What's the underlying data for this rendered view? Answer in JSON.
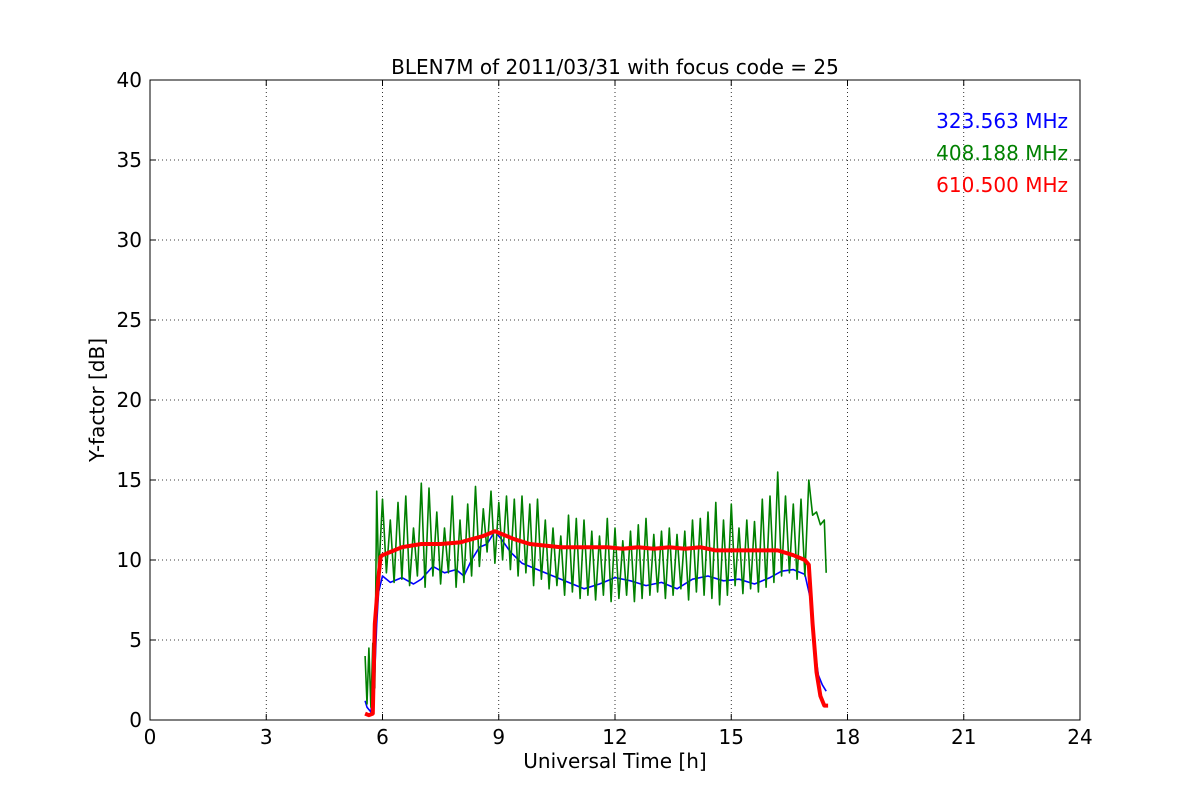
{
  "chart_data": {
    "type": "line",
    "title": "BLEN7M of 2011/03/31 with focus code = 25",
    "xlabel": "Universal Time [h]",
    "ylabel": "Y-factor [dB]",
    "xlim": [
      0,
      24
    ],
    "ylim": [
      0,
      40
    ],
    "xticks": [
      0,
      3,
      6,
      9,
      12,
      15,
      18,
      21,
      24
    ],
    "yticks": [
      0,
      5,
      10,
      15,
      20,
      25,
      30,
      35,
      40
    ],
    "grid": true,
    "legend_position": "top-right",
    "series": [
      {
        "name": "323.563 MHz",
        "color": "#0000ff",
        "x": [
          5.55,
          5.6,
          5.7,
          5.8,
          5.85,
          5.9,
          6.0,
          6.2,
          6.5,
          6.8,
          7.0,
          7.3,
          7.6,
          7.9,
          8.1,
          8.3,
          8.5,
          8.7,
          8.9,
          9.1,
          9.3,
          9.6,
          10.0,
          10.4,
          10.8,
          11.2,
          11.6,
          12.0,
          12.4,
          12.8,
          13.2,
          13.6,
          14.0,
          14.4,
          14.8,
          15.2,
          15.6,
          16.0,
          16.3,
          16.6,
          16.9,
          17.05,
          17.15,
          17.25,
          17.35,
          17.45
        ],
        "y": [
          1.2,
          0.8,
          0.5,
          3.0,
          6.0,
          8.0,
          9.0,
          8.6,
          8.9,
          8.5,
          8.8,
          9.6,
          9.2,
          9.4,
          9.0,
          10.0,
          10.8,
          11.0,
          11.8,
          11.2,
          10.5,
          9.8,
          9.4,
          9.0,
          8.6,
          8.2,
          8.5,
          8.9,
          8.7,
          8.4,
          8.6,
          8.2,
          8.8,
          9.0,
          8.7,
          8.8,
          8.5,
          8.9,
          9.3,
          9.4,
          9.1,
          7.5,
          4.5,
          2.8,
          2.2,
          1.8
        ]
      },
      {
        "name": "408.188 MHz",
        "color": "#008000",
        "x": [
          5.55,
          5.6,
          5.65,
          5.7,
          5.75,
          5.8,
          5.85,
          5.9,
          6.0,
          6.1,
          6.2,
          6.3,
          6.4,
          6.5,
          6.6,
          6.7,
          6.8,
          6.9,
          7.0,
          7.1,
          7.2,
          7.3,
          7.4,
          7.5,
          7.6,
          7.7,
          7.8,
          7.9,
          8.0,
          8.1,
          8.2,
          8.3,
          8.4,
          8.5,
          8.6,
          8.7,
          8.8,
          8.9,
          9.0,
          9.1,
          9.2,
          9.3,
          9.4,
          9.5,
          9.6,
          9.7,
          9.8,
          9.9,
          10.0,
          10.1,
          10.2,
          10.3,
          10.4,
          10.5,
          10.6,
          10.7,
          10.8,
          10.9,
          11.0,
          11.1,
          11.2,
          11.3,
          11.4,
          11.5,
          11.6,
          11.7,
          11.8,
          11.9,
          12.0,
          12.1,
          12.2,
          12.3,
          12.4,
          12.5,
          12.6,
          12.7,
          12.8,
          12.9,
          13.0,
          13.1,
          13.2,
          13.3,
          13.4,
          13.5,
          13.6,
          13.7,
          13.8,
          13.9,
          14.0,
          14.1,
          14.2,
          14.3,
          14.4,
          14.5,
          14.6,
          14.7,
          14.8,
          14.9,
          15.0,
          15.1,
          15.2,
          15.3,
          15.4,
          15.5,
          15.6,
          15.7,
          15.8,
          15.9,
          16.0,
          16.1,
          16.2,
          16.3,
          16.4,
          16.5,
          16.6,
          16.7,
          16.8,
          16.9,
          17.0,
          17.1,
          17.2,
          17.3,
          17.4,
          17.45
        ],
        "y": [
          4.0,
          1.0,
          4.5,
          0.8,
          4.8,
          2.0,
          14.3,
          9.0,
          13.8,
          9.2,
          12.5,
          8.6,
          13.6,
          8.8,
          14.0,
          8.4,
          12.0,
          9.0,
          14.8,
          8.3,
          14.5,
          9.0,
          13.0,
          8.5,
          12.0,
          9.2,
          14.0,
          8.3,
          12.5,
          8.6,
          13.5,
          9.0,
          14.6,
          9.6,
          13.2,
          10.5,
          14.3,
          9.8,
          13.6,
          10.0,
          14.0,
          9.4,
          13.8,
          9.0,
          14.0,
          9.2,
          13.5,
          8.4,
          13.8,
          8.8,
          12.5,
          8.2,
          12.0,
          8.4,
          11.5,
          7.8,
          12.8,
          8.0,
          12.6,
          7.6,
          12.5,
          7.8,
          11.8,
          7.5,
          11.5,
          7.8,
          12.6,
          7.4,
          12.0,
          7.6,
          11.2,
          7.8,
          11.8,
          7.4,
          12.2,
          7.6,
          12.6,
          7.8,
          11.6,
          8.0,
          11.8,
          7.6,
          12.0,
          7.8,
          11.6,
          8.2,
          11.8,
          7.5,
          12.5,
          8.0,
          12.6,
          7.8,
          13.0,
          7.6,
          13.6,
          7.2,
          12.5,
          7.8,
          13.5,
          8.4,
          12.0,
          7.9,
          12.5,
          8.2,
          12.4,
          8.0,
          13.8,
          8.3,
          14.0,
          8.6,
          15.5,
          9.0,
          14.0,
          9.2,
          13.5,
          8.8,
          13.8,
          9.0,
          15.0,
          12.8,
          13.0,
          12.2,
          12.5,
          9.2
        ]
      },
      {
        "name": "610.500 MHz",
        "color": "#ff0000",
        "x": [
          5.55,
          5.65,
          5.75,
          5.8,
          5.9,
          5.95,
          6.0,
          6.2,
          6.5,
          7.0,
          7.5,
          8.0,
          8.3,
          8.6,
          8.9,
          9.1,
          9.4,
          9.8,
          10.2,
          10.6,
          11.0,
          11.4,
          11.8,
          12.2,
          12.6,
          13.0,
          13.4,
          13.8,
          14.2,
          14.6,
          15.0,
          15.4,
          15.8,
          16.2,
          16.6,
          16.9,
          17.0,
          17.1,
          17.2,
          17.3,
          17.4,
          17.5
        ],
        "y": [
          0.4,
          0.3,
          0.4,
          6.0,
          9.0,
          10.2,
          10.3,
          10.5,
          10.8,
          11.0,
          11.0,
          11.1,
          11.3,
          11.5,
          11.8,
          11.6,
          11.3,
          11.0,
          10.9,
          10.8,
          10.8,
          10.8,
          10.8,
          10.7,
          10.8,
          10.7,
          10.8,
          10.7,
          10.8,
          10.6,
          10.6,
          10.6,
          10.6,
          10.6,
          10.3,
          10.0,
          9.7,
          6.0,
          3.0,
          1.5,
          0.9,
          0.9
        ]
      }
    ]
  }
}
